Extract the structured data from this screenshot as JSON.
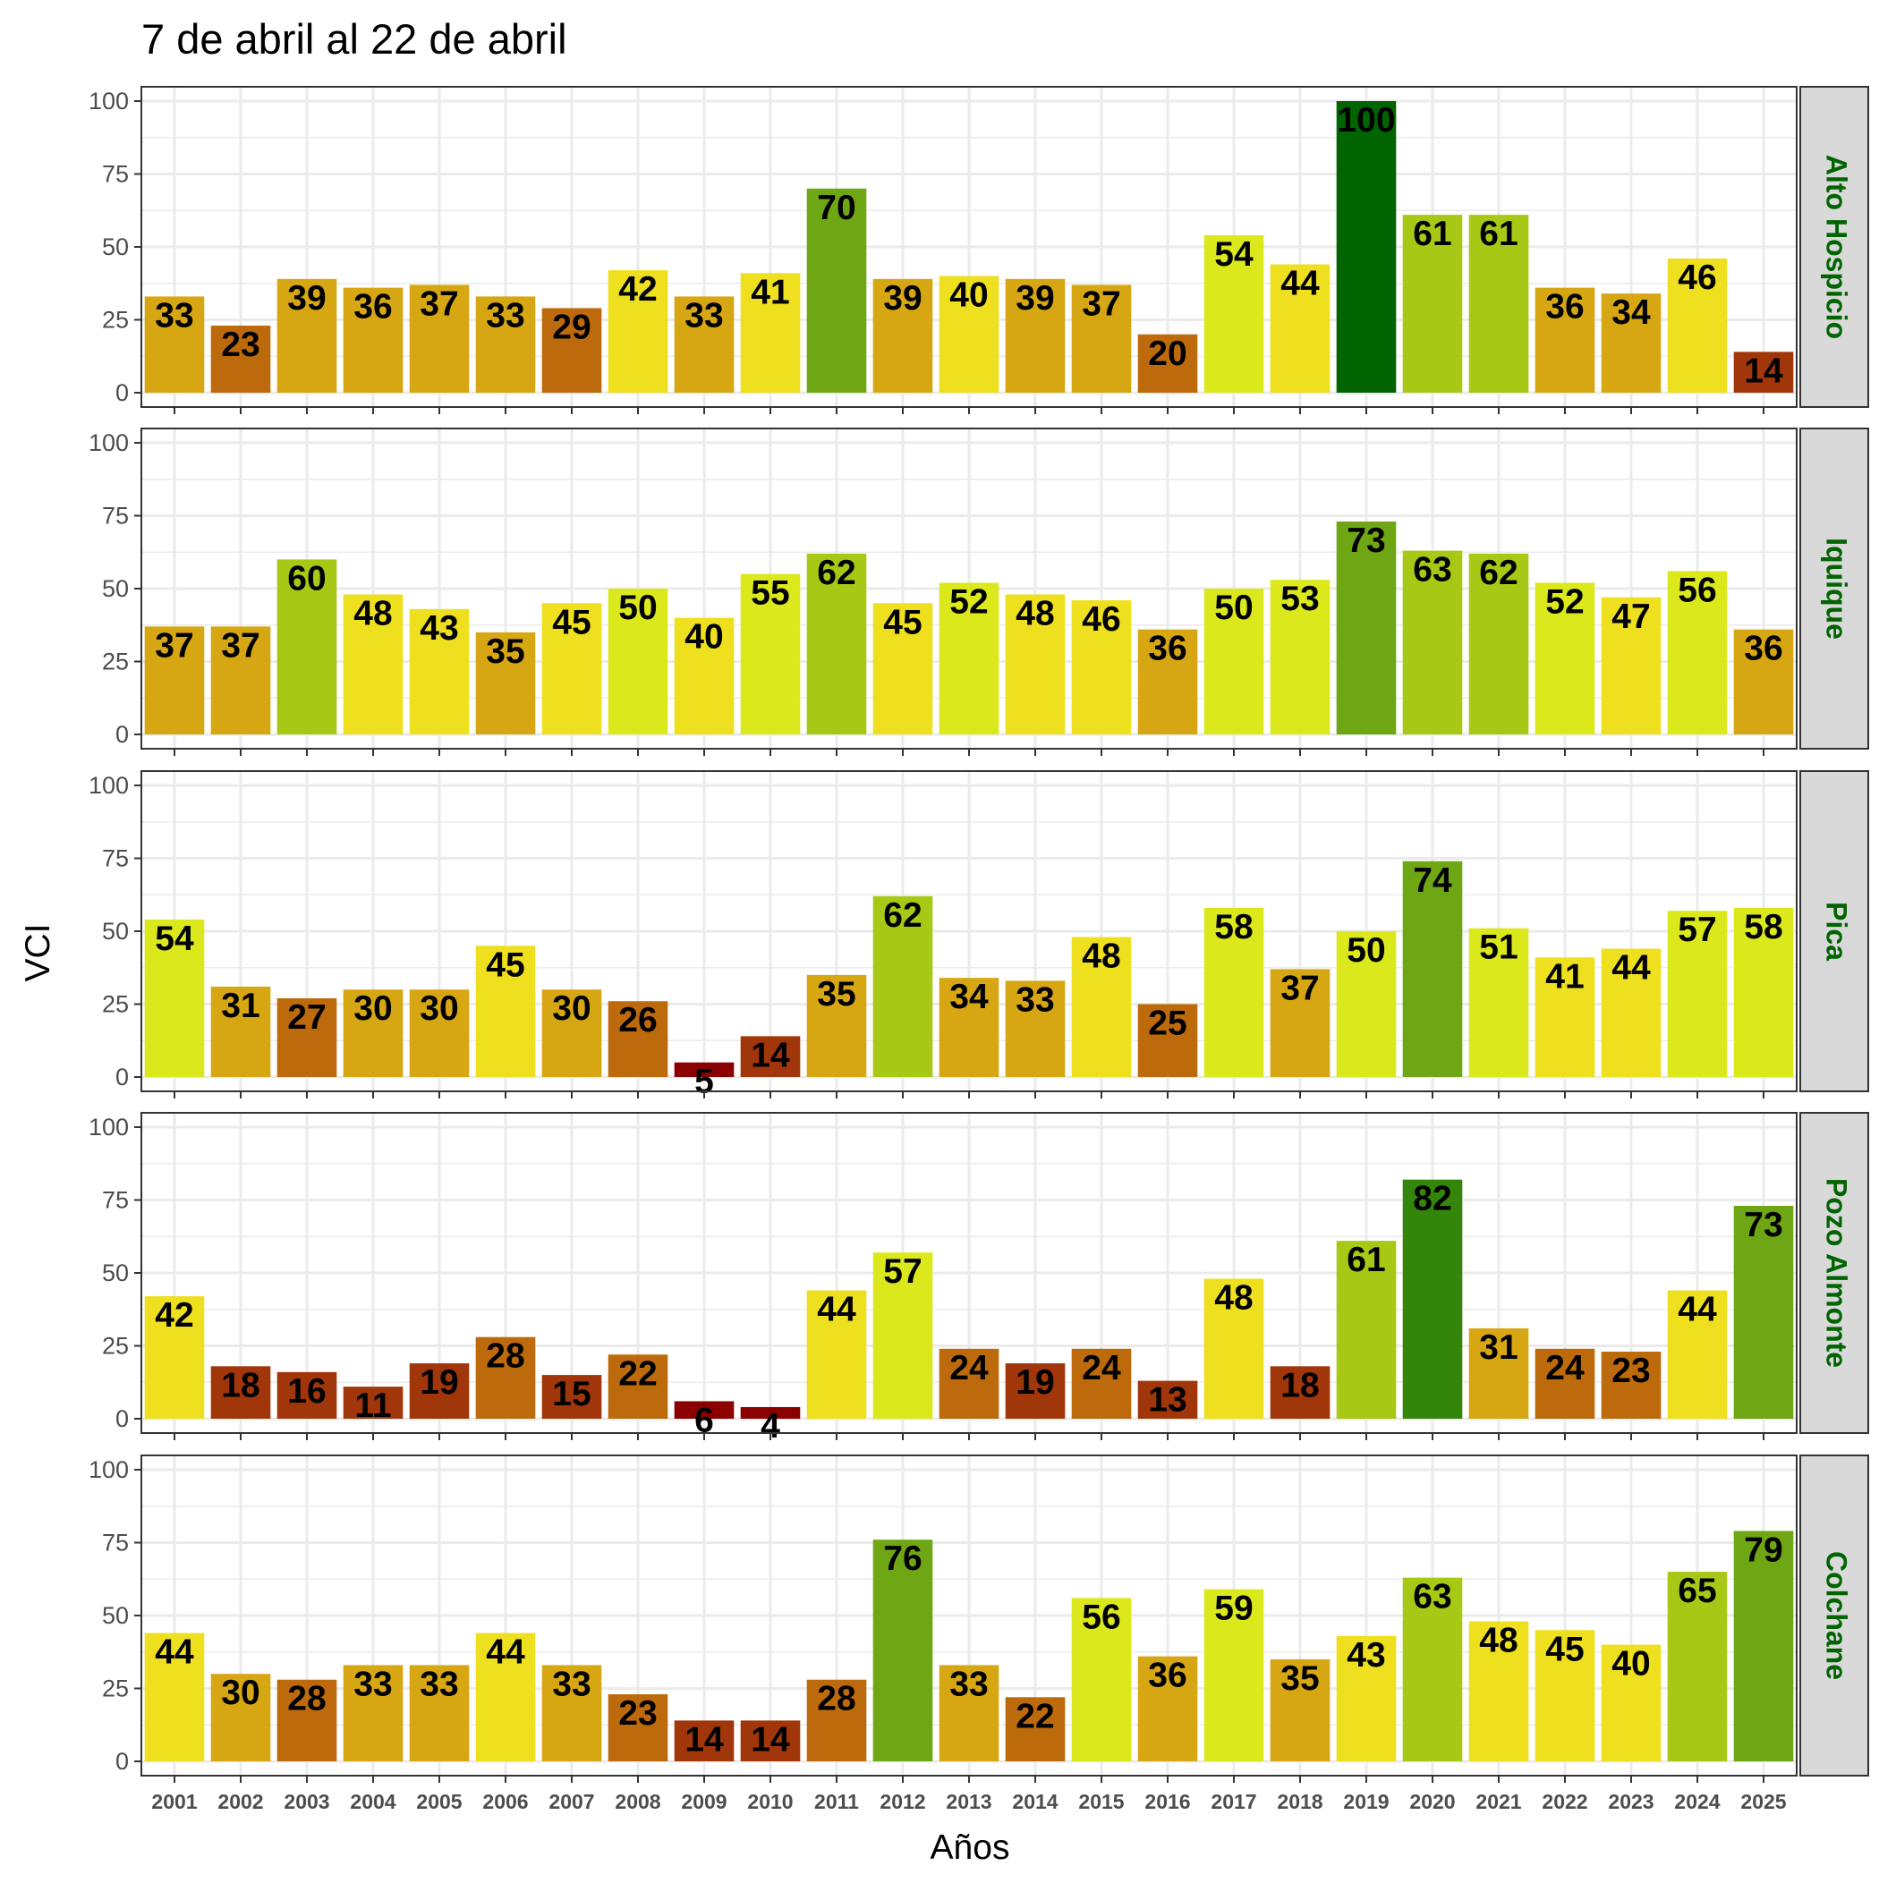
{
  "chart_data": {
    "type": "bar",
    "title": "7 de abril al 22 de abril",
    "xlabel": "Años",
    "ylabel": "VCI",
    "ylim": [
      0,
      100
    ],
    "yticks": [
      "0",
      "25",
      "50",
      "75",
      "100"
    ],
    "grid": true,
    "legend": "none",
    "categories": [
      "2001",
      "2002",
      "2003",
      "2004",
      "2005",
      "2006",
      "2007",
      "2008",
      "2009",
      "2010",
      "2011",
      "2012",
      "2013",
      "2014",
      "2015",
      "2016",
      "2017",
      "2018",
      "2019",
      "2020",
      "2021",
      "2022",
      "2023",
      "2024",
      "2025"
    ],
    "series": [
      {
        "name": "Alto Hospicio",
        "values": [
          33,
          23,
          39,
          36,
          37,
          33,
          29,
          42,
          33,
          41,
          70,
          39,
          40,
          39,
          37,
          20,
          54,
          44,
          100,
          61,
          61,
          36,
          34,
          46,
          14
        ]
      },
      {
        "name": "Iquique",
        "values": [
          37,
          37,
          60,
          48,
          43,
          35,
          45,
          50,
          40,
          55,
          62,
          45,
          52,
          48,
          46,
          36,
          50,
          53,
          73,
          63,
          62,
          52,
          47,
          56,
          36
        ]
      },
      {
        "name": "Pica",
        "values": [
          54,
          31,
          27,
          30,
          30,
          45,
          30,
          26,
          5,
          14,
          35,
          62,
          34,
          33,
          48,
          25,
          58,
          37,
          50,
          74,
          51,
          41,
          44,
          57,
          58
        ]
      },
      {
        "name": "Pozo Almonte",
        "values": [
          42,
          18,
          16,
          11,
          19,
          28,
          15,
          22,
          6,
          4,
          44,
          57,
          24,
          19,
          24,
          13,
          48,
          18,
          61,
          82,
          31,
          24,
          23,
          44,
          73
        ]
      },
      {
        "name": "Colchane",
        "values": [
          44,
          30,
          28,
          33,
          33,
          44,
          33,
          23,
          14,
          14,
          28,
          76,
          33,
          22,
          56,
          36,
          59,
          35,
          43,
          63,
          48,
          45,
          40,
          65,
          79
        ]
      }
    ],
    "colors": {
      "v0_10": "#8b0000",
      "v10_20": "#a0360a",
      "v20_30": "#bd6a0c",
      "v30_40": "#d7a613",
      "v40_50": "#eedf1f",
      "v50_60": "#dbe91c",
      "v60_70": "#a7c916",
      "v70_80": "#6ea713",
      "v80_90": "#34860a",
      "v90_100": "#006400",
      "strip_text": "#006400",
      "strip_fill": "#d9d9d9",
      "grid": "#ebebeb",
      "panel_border": "#333333"
    }
  }
}
